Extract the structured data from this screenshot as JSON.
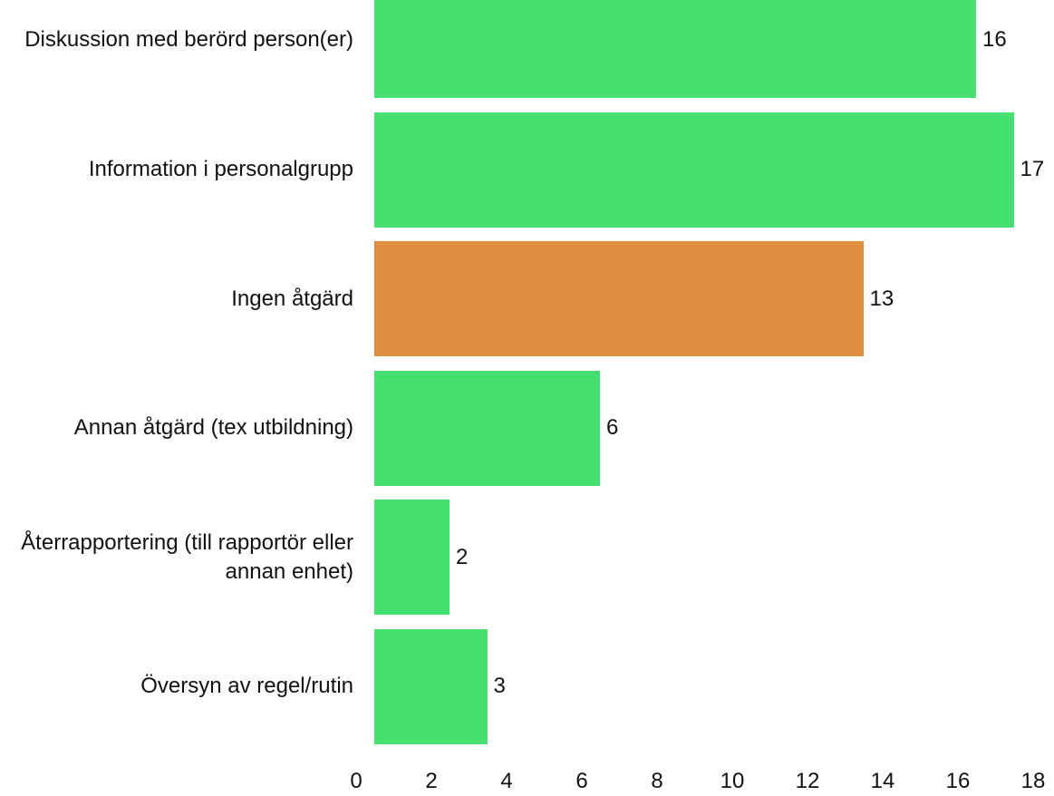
{
  "chart_data": {
    "type": "bar",
    "orientation": "horizontal",
    "categories": [
      "Diskussion med berörd person(er)",
      "Information i personalgrupp",
      "Ingen åtgärd",
      "Annan åtgärd (tex utbildning)",
      "Återrapportering (till rapportör eller annan enhet)",
      "Översyn av regel/rutin"
    ],
    "values": [
      16,
      17,
      13,
      6,
      2,
      3
    ],
    "colors": [
      "#45e070",
      "#45e070",
      "#e08d3f",
      "#45e070",
      "#45e070",
      "#45e070"
    ],
    "xlim": [
      0,
      18
    ],
    "xticks": [
      0,
      2,
      4,
      6,
      8,
      10,
      12,
      14,
      16,
      18
    ]
  }
}
